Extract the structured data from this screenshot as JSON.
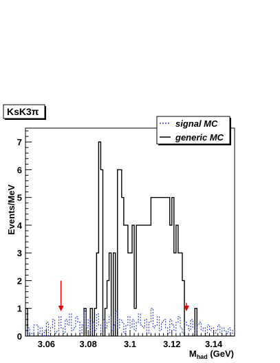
{
  "chart_data": {
    "type": "histogram",
    "title": "KsK3π",
    "xlabel": "M",
    "xlabel_sub": "had",
    "xlabel_unit": " (GeV)",
    "ylabel": "Events/MeV",
    "xlim": [
      3.05,
      3.15
    ],
    "ylim": [
      0,
      7.5
    ],
    "x_ticks": [
      "3.06",
      "3.08",
      "3.1",
      "3.12",
      "3.14"
    ],
    "x_tick_values": [
      3.06,
      3.08,
      3.1,
      3.12,
      3.14
    ],
    "y_ticks": [
      "0",
      "1",
      "2",
      "3",
      "4",
      "5",
      "6",
      "7"
    ],
    "y_tick_values": [
      0,
      1,
      2,
      3,
      4,
      5,
      6,
      7
    ],
    "bin_width": 0.001,
    "bin_start": 3.05,
    "series": [
      {
        "name": "generic MC",
        "style": "solid",
        "color": "#000000",
        "values": [
          1,
          0,
          0,
          0,
          0,
          0,
          0,
          0,
          0,
          0,
          0,
          0,
          0,
          0,
          0,
          0,
          0,
          0,
          0,
          0,
          0,
          0,
          0,
          0,
          0,
          0,
          0,
          0,
          1,
          0,
          0,
          1,
          0,
          1,
          3,
          7,
          6,
          0,
          1,
          2,
          3,
          0,
          3,
          0,
          6,
          6,
          5,
          4,
          4,
          3,
          3,
          4,
          1,
          4,
          4,
          4,
          4,
          4,
          4,
          4,
          5,
          5,
          5,
          5,
          5,
          5,
          5,
          5,
          5,
          4,
          5,
          3,
          4,
          3,
          3,
          2,
          0,
          0,
          0,
          0,
          0,
          1,
          0,
          0,
          0,
          0,
          0,
          0,
          0,
          0,
          0,
          0,
          0,
          0,
          0,
          0,
          0,
          0,
          0,
          0
        ]
      },
      {
        "name": "signal MC",
        "style": "dashed",
        "color": "#3344cc",
        "values": [
          0,
          0.3,
          0,
          0.1,
          0.4,
          0.4,
          0.1,
          0.3,
          0,
          0.2,
          0.5,
          0,
          0.3,
          0.6,
          0.1,
          0.2,
          0.7,
          0.3,
          0.1,
          0.6,
          0.4,
          0.8,
          0.2,
          0.3,
          0.7,
          0.5,
          0.1,
          0.4,
          0.9,
          0.3,
          0.6,
          0.1,
          0.5,
          0.2,
          0.8,
          0.4,
          0.1,
          0.6,
          0.3,
          0.5,
          0.7,
          0.2,
          0.4,
          0.9,
          0.3,
          0.6,
          0.5,
          0.1,
          0.4,
          0.7,
          0.3,
          0.6,
          0.2,
          0.5,
          0.8,
          0.4,
          0.3,
          0.6,
          0.1,
          0.5,
          1.0,
          0.3,
          0.4,
          0.7,
          0.2,
          0.5,
          0.6,
          0.3,
          0.1,
          0.6,
          0.4,
          0.2,
          0.5,
          0.7,
          0.3,
          0.1,
          0.5,
          0.4,
          0.2,
          0.6,
          0.3,
          0.1,
          0.4,
          0.5,
          0.2,
          0.3,
          0.1,
          0.4,
          0.2,
          0.3,
          0.1,
          0.2,
          0.4,
          0.1,
          0.3,
          0.2,
          0.1,
          0.3,
          0.1,
          0.2
        ]
      }
    ],
    "annotations": [
      {
        "type": "arrow",
        "x": 3.067,
        "y_from": 2.0,
        "y_to": 0.9,
        "color": "#dd0000"
      },
      {
        "type": "arrow",
        "x": 3.127,
        "y_from": 1.2,
        "y_to": 0.9,
        "color": "#dd0000"
      }
    ],
    "legend_position": "top-right",
    "grid": false
  }
}
